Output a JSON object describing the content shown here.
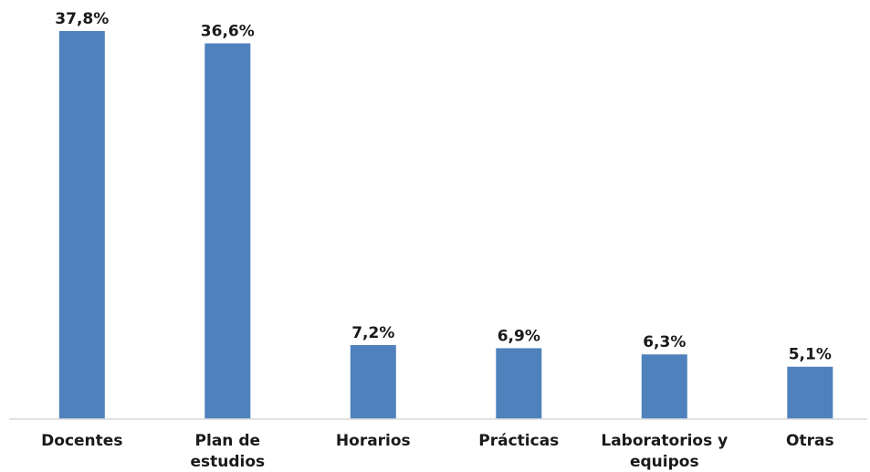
{
  "chart_data": {
    "type": "bar",
    "title": "",
    "xlabel": "",
    "ylabel": "",
    "categories": [
      [
        "Docentes"
      ],
      [
        "Plan de",
        "estudios"
      ],
      [
        "Horarios"
      ],
      [
        "Prácticas"
      ],
      [
        "Laboratorios y",
        "equipos"
      ],
      [
        "Otras"
      ]
    ],
    "values": [
      37.8,
      36.6,
      7.2,
      6.9,
      6.3,
      5.1
    ],
    "data_labels": [
      "37,8%",
      "36,6%",
      "7,2%",
      "6,9%",
      "6,3%",
      "5,1%"
    ],
    "ylim": [
      0,
      37.8
    ],
    "grid": false,
    "legend": "none",
    "bar_color": "#4f81bd"
  }
}
